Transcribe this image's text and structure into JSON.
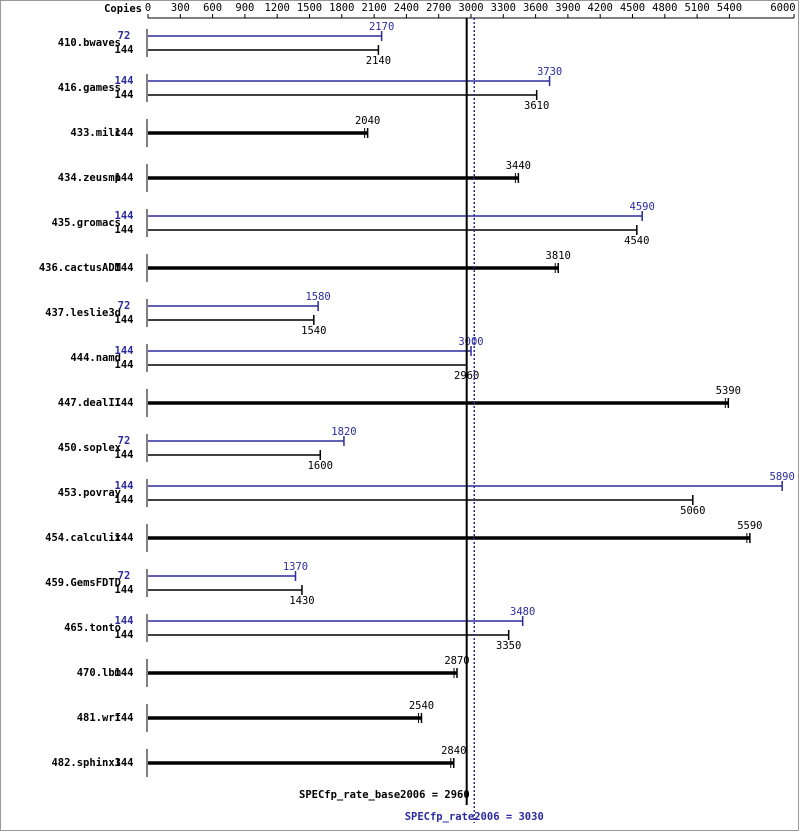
{
  "chart_data": {
    "type": "bar",
    "orientation": "horizontal",
    "x_label": "Copies",
    "categories": [
      "410.bwaves",
      "416.gamess",
      "433.milc",
      "434.zeusmp",
      "435.gromacs",
      "436.cactusADM",
      "437.leslie3d",
      "444.namd",
      "447.dealII",
      "450.soplex",
      "453.povray",
      "454.calculix",
      "459.GemsFDTD",
      "465.tonto",
      "470.lbm",
      "481.wrf",
      "482.sphinx3"
    ],
    "series": [
      {
        "color": "#000000",
        "copies": [
          144,
          144,
          144,
          144,
          144,
          144,
          144,
          144,
          144,
          144,
          144,
          144,
          144,
          144,
          144,
          144,
          144
        ],
        "values": [
          2140,
          3610,
          2040,
          3440,
          4540,
          3810,
          1540,
          2960,
          5390,
          1600,
          5060,
          5590,
          1430,
          3350,
          2870,
          2540,
          2840
        ]
      },
      {
        "color": "#2b2b9f",
        "copies": [
          72,
          144,
          null,
          null,
          144,
          null,
          72,
          144,
          null,
          72,
          144,
          null,
          72,
          144,
          null,
          null,
          null
        ],
        "values": [
          2170,
          3730,
          null,
          null,
          4590,
          null,
          1580,
          3000,
          null,
          1820,
          5890,
          null,
          1370,
          3480,
          null,
          null,
          null
        ]
      }
    ],
    "xlim": [
      0,
      6000
    ],
    "xticks": [
      0,
      300,
      600,
      900,
      1200,
      1500,
      1800,
      2100,
      2400,
      2700,
      3000,
      3300,
      3600,
      3900,
      4200,
      4500,
      4800,
      5100,
      5400,
      6000
    ],
    "reference_lines": [
      {
        "text": "SPECfp_rate_base2006 = 2960",
        "value": 2960,
        "color": "#000000",
        "style": "solid"
      },
      {
        "text": "SPECfp_rate2006 = 3030",
        "value": 3030,
        "color": "#2b2b9f",
        "style": "dotted"
      }
    ]
  }
}
